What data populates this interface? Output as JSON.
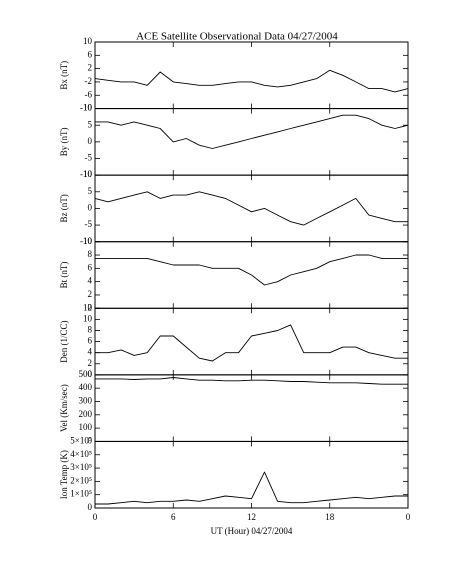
{
  "chart_data": [
    {
      "type": "line",
      "title": "ACE Satellite Observational Data  04/27/2004",
      "ylabel": "Bx (nT)",
      "x": [
        0,
        1,
        2,
        3,
        4,
        5,
        6,
        7,
        8,
        9,
        10,
        11,
        12,
        13,
        14,
        15,
        16,
        17,
        18,
        19,
        20,
        21,
        22,
        23,
        24
      ],
      "values": [
        -1,
        -1.5,
        -2,
        -2,
        -3,
        1,
        -2,
        -2.5,
        -3,
        -3,
        -2.5,
        -2,
        -2,
        -3,
        -3.5,
        -3,
        -2,
        -1,
        1.5,
        0,
        -2,
        -4,
        -4,
        -5,
        -4
      ],
      "xlim": [
        0,
        24
      ],
      "xticks": [
        0,
        6,
        12,
        18,
        24
      ],
      "ylim": [
        -10,
        10
      ],
      "yticks": [
        -10,
        -6,
        -2,
        2,
        6,
        10
      ]
    },
    {
      "type": "line",
      "ylabel": "By (nT)",
      "x": [
        0,
        1,
        2,
        3,
        4,
        5,
        6,
        7,
        8,
        9,
        10,
        11,
        12,
        13,
        14,
        15,
        16,
        17,
        18,
        19,
        20,
        21,
        22,
        23,
        24
      ],
      "values": [
        6,
        6,
        5,
        6,
        5,
        4,
        0,
        1,
        -1,
        -2,
        -1,
        0,
        1,
        2,
        3,
        4,
        5,
        6,
        7,
        8,
        8,
        7,
        5,
        4,
        5
      ],
      "xlim": [
        0,
        24
      ],
      "xticks": [
        0,
        6,
        12,
        18,
        24
      ],
      "ylim": [
        -10,
        10
      ],
      "yticks": [
        -10,
        -5,
        0,
        5,
        10
      ]
    },
    {
      "type": "line",
      "ylabel": "Bz (nT)",
      "x": [
        0,
        1,
        2,
        3,
        4,
        5,
        6,
        7,
        8,
        9,
        10,
        11,
        12,
        13,
        14,
        15,
        16,
        17,
        18,
        19,
        20,
        21,
        22,
        23,
        24
      ],
      "values": [
        3,
        2,
        3,
        4,
        5,
        3,
        4,
        4,
        5,
        4,
        3,
        1,
        -1,
        0,
        -2,
        -4,
        -5,
        -3,
        -1,
        1,
        3,
        -2,
        -3,
        -4,
        -4
      ],
      "xlim": [
        0,
        24
      ],
      "xticks": [
        0,
        6,
        12,
        18,
        24
      ],
      "ylim": [
        -10,
        10
      ],
      "yticks": [
        -10,
        -5,
        0,
        5,
        10
      ]
    },
    {
      "type": "line",
      "ylabel": "Bt (nT)",
      "x": [
        0,
        1,
        2,
        3,
        4,
        5,
        6,
        7,
        8,
        9,
        10,
        11,
        12,
        13,
        14,
        15,
        16,
        17,
        18,
        19,
        20,
        21,
        22,
        23,
        24
      ],
      "values": [
        7.5,
        7.5,
        7.5,
        7.5,
        7.5,
        7,
        6.5,
        6.5,
        6.5,
        6,
        6,
        6,
        5,
        3.5,
        4,
        5,
        5.5,
        6,
        7,
        7.5,
        8,
        8,
        7.5,
        7.5,
        7.5
      ],
      "xlim": [
        0,
        24
      ],
      "xticks": [
        0,
        6,
        12,
        18,
        24
      ],
      "ylim": [
        0,
        10
      ],
      "yticks": [
        0,
        2,
        4,
        6,
        8,
        10
      ]
    },
    {
      "type": "line",
      "ylabel": "Den (1/CC)",
      "x": [
        0,
        1,
        2,
        3,
        4,
        5,
        6,
        7,
        8,
        9,
        10,
        11,
        12,
        13,
        14,
        15,
        16,
        17,
        18,
        19,
        20,
        21,
        22,
        23,
        24
      ],
      "values": [
        4,
        4,
        4.5,
        3.5,
        4,
        7,
        7,
        5,
        3,
        2.5,
        4,
        4,
        7,
        7.5,
        8,
        9,
        4,
        4,
        4,
        5,
        5,
        4,
        3.5,
        3,
        3
      ],
      "xlim": [
        0,
        24
      ],
      "xticks": [
        0,
        6,
        12,
        18,
        24
      ],
      "ylim": [
        0,
        12
      ],
      "yticks": [
        0,
        2,
        4,
        6,
        8,
        10,
        12
      ]
    },
    {
      "type": "line",
      "ylabel": "Vel (Km/sec)",
      "x": [
        0,
        1,
        2,
        3,
        4,
        5,
        6,
        7,
        8,
        9,
        10,
        11,
        12,
        13,
        14,
        15,
        16,
        17,
        18,
        19,
        20,
        21,
        22,
        23,
        24
      ],
      "values": [
        470,
        470,
        470,
        465,
        470,
        470,
        480,
        470,
        460,
        460,
        455,
        455,
        460,
        460,
        455,
        450,
        450,
        445,
        440,
        440,
        440,
        435,
        430,
        430,
        430
      ],
      "xlim": [
        0,
        24
      ],
      "xticks": [
        0,
        6,
        12,
        18,
        24
      ],
      "ylim": [
        0,
        500
      ],
      "yticks": [
        0,
        100,
        200,
        300,
        400,
        500
      ]
    },
    {
      "type": "line",
      "ylabel": "Ion Temp (K)",
      "xlabel": "UT (Hour)  04/27/2004",
      "x": [
        0,
        1,
        2,
        3,
        4,
        5,
        6,
        7,
        8,
        9,
        10,
        11,
        12,
        13,
        14,
        15,
        16,
        17,
        18,
        19,
        20,
        21,
        22,
        23,
        24
      ],
      "values": [
        30000,
        30000,
        40000,
        50000,
        40000,
        50000,
        50000,
        60000,
        50000,
        70000,
        90000,
        80000,
        70000,
        270000,
        50000,
        40000,
        40000,
        50000,
        60000,
        70000,
        80000,
        70000,
        80000,
        90000,
        90000
      ],
      "xlim": [
        0,
        24
      ],
      "xticks": [
        0,
        6,
        12,
        18,
        {
          "value": 24,
          "label": "0"
        }
      ],
      "ylim": [
        0,
        500000
      ],
      "yticks": [
        0,
        {
          "value": 100000,
          "label": "1×10⁵"
        },
        {
          "value": 200000,
          "label": "2×10⁵"
        },
        {
          "value": 300000,
          "label": "3×10⁵"
        },
        {
          "value": 400000,
          "label": "4×10⁵"
        },
        {
          "value": 500000,
          "label": "5×10⁵"
        }
      ]
    }
  ]
}
